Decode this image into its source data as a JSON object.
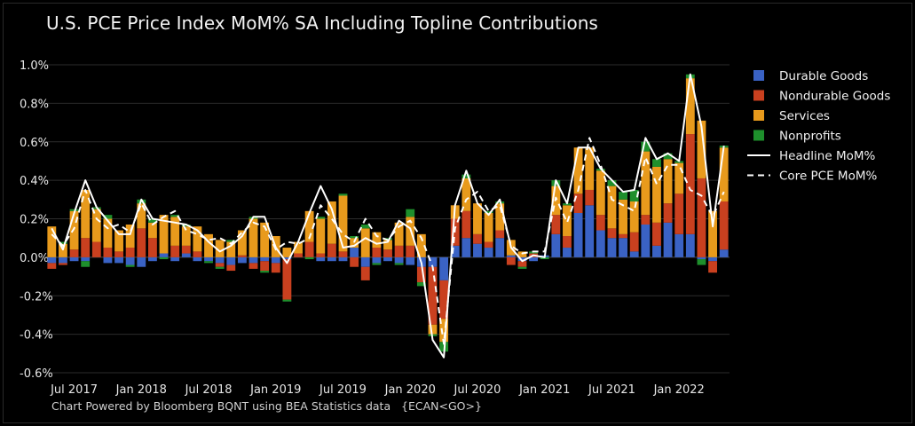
{
  "title": "U.S. PCE Price Index MoM% SA Including Topline Contributions",
  "footer": "Chart Powered by Bloomberg BQNT using BEA Statistics data   {ECAN<GO>}",
  "chart_data": {
    "type": "bar",
    "stacked": true,
    "x": [
      "2017-05",
      "2017-06",
      "2017-07",
      "2017-08",
      "2017-09",
      "2017-10",
      "2017-11",
      "2017-12",
      "2018-01",
      "2018-02",
      "2018-03",
      "2018-04",
      "2018-05",
      "2018-06",
      "2018-07",
      "2018-08",
      "2018-09",
      "2018-10",
      "2018-11",
      "2018-12",
      "2019-01",
      "2019-02",
      "2019-03",
      "2019-04",
      "2019-05",
      "2019-06",
      "2019-07",
      "2019-08",
      "2019-09",
      "2019-10",
      "2019-11",
      "2019-12",
      "2020-01",
      "2020-02",
      "2020-03",
      "2020-04",
      "2020-05",
      "2020-06",
      "2020-07",
      "2020-08",
      "2020-09",
      "2020-10",
      "2020-11",
      "2020-12",
      "2021-01",
      "2021-02",
      "2021-03",
      "2021-04",
      "2021-05",
      "2021-06",
      "2021-07",
      "2021-08",
      "2021-09",
      "2021-10",
      "2021-11",
      "2021-12",
      "2022-01",
      "2022-02",
      "2022-03",
      "2022-04",
      "2022-05"
    ],
    "x_tick_labels": [
      "Jul 2017",
      "Jan 2018",
      "Jul 2018",
      "Jan 2019",
      "Jul 2019",
      "Jan 2020",
      "Jul 2020",
      "Jan 2021",
      "Jul 2021",
      "Jan 2022"
    ],
    "x_tick_months": [
      "2017-07",
      "2018-01",
      "2018-07",
      "2019-01",
      "2019-07",
      "2020-01",
      "2020-07",
      "2021-01",
      "2021-07",
      "2022-01"
    ],
    "y_ticks": [
      "1.0%",
      "0.8%",
      "0.6%",
      "0.4%",
      "0.2%",
      "0.0%",
      "-0.2%",
      "-0.4%",
      "-0.6%"
    ],
    "y_tick_values": [
      1.0,
      0.8,
      0.6,
      0.4,
      0.2,
      0.0,
      -0.2,
      -0.4,
      -0.6
    ],
    "ylim": [
      -0.6,
      1.0
    ],
    "grid": true,
    "legend_position": "top-right",
    "colors": {
      "Headline MoM%": "#ffffff",
      "Core PCE MoM%": "#ffffff",
      "Durable Goods": "#3a62c4",
      "Nondurable Goods": "#c9401f",
      "Services": "#e89a1c",
      "Nonprofits": "#1e8f2c"
    },
    "series": [
      {
        "name": "Durable Goods",
        "kind": "bar",
        "values": [
          -0.03,
          -0.03,
          -0.02,
          -0.02,
          0.0,
          -0.03,
          -0.03,
          -0.04,
          -0.05,
          -0.02,
          0.02,
          -0.02,
          0.02,
          -0.02,
          -0.02,
          -0.03,
          -0.04,
          -0.03,
          -0.03,
          -0.02,
          -0.03,
          -0.01,
          0.0,
          0.0,
          -0.02,
          -0.02,
          -0.02,
          0.05,
          -0.05,
          -0.03,
          -0.02,
          -0.03,
          -0.04,
          -0.05,
          -0.05,
          -0.12,
          0.06,
          0.1,
          0.07,
          0.05,
          0.1,
          0.01,
          -0.02,
          -0.02,
          0.01,
          0.12,
          0.05,
          0.23,
          0.27,
          0.14,
          0.1,
          0.1,
          0.03,
          0.17,
          0.06,
          0.18,
          0.12,
          0.12,
          -0.01,
          -0.02,
          0.04
        ]
      },
      {
        "name": "Nondurable Goods",
        "kind": "bar",
        "values": [
          -0.03,
          -0.01,
          0.04,
          0.1,
          0.08,
          0.05,
          0.03,
          0.05,
          0.15,
          0.1,
          0.0,
          0.06,
          0.04,
          0.03,
          0.0,
          -0.02,
          -0.03,
          0.01,
          -0.03,
          -0.05,
          -0.05,
          -0.21,
          0.02,
          0.08,
          0.02,
          0.07,
          0.03,
          -0.05,
          -0.07,
          0.05,
          0.04,
          0.06,
          0.06,
          -0.08,
          -0.3,
          -0.2,
          0.14,
          0.14,
          0.05,
          0.03,
          0.04,
          -0.04,
          -0.03,
          0.02,
          0.0,
          0.1,
          0.06,
          0.1,
          0.08,
          0.08,
          0.05,
          0.02,
          0.1,
          0.05,
          0.12,
          0.1,
          0.21,
          0.52,
          0.41,
          -0.06,
          0.25
        ]
      },
      {
        "name": "Services",
        "kind": "bar",
        "values": [
          0.16,
          0.07,
          0.2,
          0.25,
          0.17,
          0.15,
          0.11,
          0.12,
          0.13,
          0.08,
          0.2,
          0.15,
          0.1,
          0.13,
          0.12,
          0.09,
          0.08,
          0.13,
          0.2,
          0.18,
          0.11,
          0.05,
          0.06,
          0.16,
          0.18,
          0.22,
          0.29,
          0.05,
          0.15,
          0.08,
          0.05,
          0.12,
          0.15,
          0.12,
          -0.05,
          -0.12,
          0.07,
          0.17,
          0.16,
          0.15,
          0.14,
          0.08,
          0.03,
          0.0,
          0.0,
          0.15,
          0.16,
          0.24,
          0.22,
          0.23,
          0.22,
          0.18,
          0.16,
          0.33,
          0.29,
          0.23,
          0.16,
          0.29,
          0.3,
          0.24,
          0.28
        ]
      },
      {
        "name": "Nonprofits",
        "kind": "bar",
        "values": [
          0.0,
          0.01,
          0.01,
          -0.03,
          0.01,
          0.02,
          0.0,
          -0.01,
          0.02,
          0.02,
          -0.01,
          0.01,
          0.01,
          0.0,
          -0.01,
          -0.01,
          0.01,
          0.0,
          0.01,
          -0.01,
          0.0,
          -0.01,
          0.0,
          -0.01,
          0.01,
          0.0,
          0.01,
          0.01,
          0.02,
          -0.01,
          0.01,
          -0.01,
          0.04,
          -0.02,
          -0.01,
          -0.05,
          0.0,
          0.02,
          0.0,
          0.01,
          0.01,
          0.0,
          -0.01,
          0.01,
          -0.01,
          0.03,
          0.01,
          0.0,
          0.0,
          0.01,
          0.03,
          0.04,
          0.06,
          0.05,
          0.04,
          0.03,
          0.01,
          0.02,
          -0.03,
          0.0,
          0.01
        ]
      },
      {
        "name": "Headline MoM%",
        "kind": "line",
        "dash": "solid",
        "values": [
          0.15,
          0.04,
          0.23,
          0.4,
          0.26,
          0.19,
          0.12,
          0.12,
          0.3,
          0.2,
          0.19,
          0.18,
          0.17,
          0.14,
          0.08,
          0.03,
          0.06,
          0.11,
          0.21,
          0.21,
          0.05,
          -0.03,
          0.08,
          0.23,
          0.37,
          0.25,
          0.05,
          0.06,
          0.1,
          0.07,
          0.08,
          0.19,
          0.15,
          -0.03,
          -0.43,
          -0.52,
          0.27,
          0.45,
          0.28,
          0.22,
          0.3,
          0.05,
          -0.02,
          0.01,
          0.0,
          0.4,
          0.28,
          0.57,
          0.57,
          0.46,
          0.4,
          0.34,
          0.35,
          0.62,
          0.51,
          0.54,
          0.5,
          0.95,
          0.68,
          0.16,
          0.58
        ]
      },
      {
        "name": "Core PCE MoM%",
        "kind": "line",
        "dash": "dashed",
        "values": [
          0.12,
          0.06,
          0.15,
          0.35,
          0.2,
          0.15,
          0.17,
          0.13,
          0.28,
          0.17,
          0.21,
          0.24,
          0.14,
          0.12,
          0.09,
          0.1,
          0.07,
          0.13,
          0.18,
          0.16,
          0.04,
          0.08,
          0.07,
          0.1,
          0.27,
          0.2,
          0.12,
          0.08,
          0.2,
          0.11,
          0.09,
          0.16,
          0.19,
          0.1,
          -0.05,
          -0.45,
          0.15,
          0.3,
          0.34,
          0.24,
          0.27,
          0.06,
          0.02,
          0.03,
          0.03,
          0.31,
          0.18,
          0.35,
          0.62,
          0.48,
          0.3,
          0.27,
          0.24,
          0.52,
          0.38,
          0.48,
          0.48,
          0.35,
          0.32,
          0.21,
          0.34
        ]
      }
    ]
  }
}
